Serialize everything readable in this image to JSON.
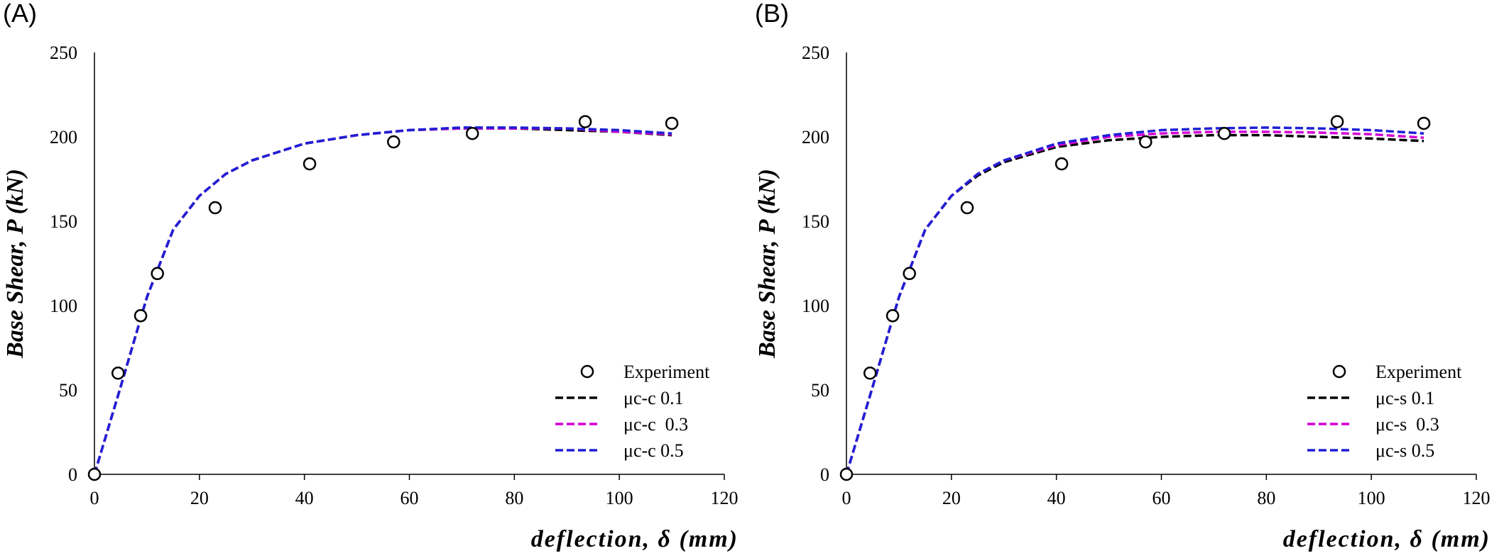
{
  "panels": [
    {
      "label": "(A)",
      "chart_data": {
        "type": "line",
        "title": "",
        "xlabel": "deflection, δ (mm)",
        "ylabel": "Base Shear, P (kN)",
        "xlim": [
          0,
          120
        ],
        "ylim": [
          0,
          250
        ],
        "xticks": [
          0,
          20,
          40,
          60,
          80,
          100,
          120
        ],
        "yticks": [
          0,
          50,
          100,
          150,
          200,
          250
        ],
        "grid": false,
        "legend_position": "bottom-right",
        "series": [
          {
            "name": "Experiment",
            "style": "markers",
            "color": "#000000",
            "x": [
              0,
              4.5,
              8.8,
              12,
              23,
              41,
              57,
              72,
              93.5,
              110
            ],
            "y": [
              0,
              60,
              94,
              119,
              158,
              184,
              197,
              202,
              209,
              208
            ]
          },
          {
            "name": "μc-c 0.1",
            "style": "dashed",
            "color": "#000000",
            "x": [
              0,
              5,
              10,
              15,
              20,
              25,
              30,
              40,
              50,
              60,
              70,
              80,
              90,
              100,
              110
            ],
            "y": [
              0,
              52,
              105,
              145,
              165,
              178,
              186,
              196,
              201,
              204,
              205,
              205,
              204,
              203,
              201
            ]
          },
          {
            "name": "μc-c  0.3",
            "style": "dashed",
            "color": "#d400d4",
            "x": [
              0,
              5,
              10,
              15,
              20,
              25,
              30,
              40,
              50,
              60,
              70,
              80,
              90,
              100,
              110
            ],
            "y": [
              0,
              52,
              105,
              145,
              165,
              178,
              186,
              196,
              201,
              204,
              205,
              205,
              205,
              203,
              201.5
            ]
          },
          {
            "name": "μc-c 0.5",
            "style": "dashed",
            "color": "#1f1fd6",
            "x": [
              0,
              5,
              10,
              15,
              20,
              25,
              30,
              40,
              50,
              60,
              70,
              80,
              90,
              100,
              110
            ],
            "y": [
              0,
              52,
              105,
              145,
              165,
              178,
              186,
              196,
              201,
              204,
              205.5,
              205.5,
              205,
              204,
              202
            ]
          }
        ]
      }
    },
    {
      "label": "(B)",
      "chart_data": {
        "type": "line",
        "title": "",
        "xlabel": "deflection, δ (mm)",
        "ylabel": "Base Shear, P (kN)",
        "xlim": [
          0,
          120
        ],
        "ylim": [
          0,
          250
        ],
        "xticks": [
          0,
          20,
          40,
          60,
          80,
          100,
          120
        ],
        "yticks": [
          0,
          50,
          100,
          150,
          200,
          250
        ],
        "grid": false,
        "legend_position": "bottom-right",
        "series": [
          {
            "name": "Experiment",
            "style": "markers",
            "color": "#000000",
            "x": [
              0,
              4.5,
              8.8,
              12,
              23,
              41,
              57,
              72,
              93.5,
              110
            ],
            "y": [
              0,
              60,
              94,
              119,
              158,
              184,
              197,
              202,
              209,
              208
            ]
          },
          {
            "name": "μc-s 0.1",
            "style": "dashed",
            "color": "#000000",
            "x": [
              0,
              5,
              10,
              15,
              20,
              25,
              30,
              40,
              50,
              60,
              70,
              80,
              90,
              100,
              110
            ],
            "y": [
              0,
              52,
              105,
              145,
              165,
              177,
              185,
              194,
              198,
              200,
              201,
              201,
              200,
              199,
              197.5
            ]
          },
          {
            "name": "μc-s  0.3",
            "style": "dashed",
            "color": "#d400d4",
            "x": [
              0,
              5,
              10,
              15,
              20,
              25,
              30,
              40,
              50,
              60,
              70,
              80,
              90,
              100,
              110
            ],
            "y": [
              0,
              52,
              105,
              145,
              165,
              178,
              186,
              195,
              200,
              202,
              203,
              203,
              202.5,
              201.5,
              199.5
            ]
          },
          {
            "name": "μc-s 0.5",
            "style": "dashed",
            "color": "#1f1fd6",
            "x": [
              0,
              5,
              10,
              15,
              20,
              25,
              30,
              40,
              50,
              60,
              70,
              80,
              90,
              100,
              110
            ],
            "y": [
              0,
              52,
              105,
              145,
              165,
              178,
              186,
              196,
              201,
              204,
              205,
              205.5,
              205,
              204,
              202
            ]
          }
        ]
      }
    }
  ]
}
